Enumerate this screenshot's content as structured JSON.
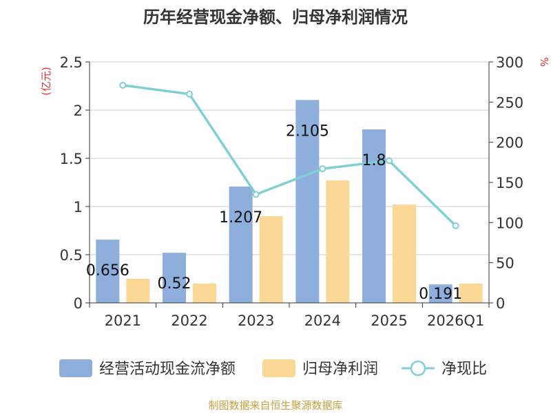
{
  "chart_data": {
    "type": "bar",
    "title": "历年经营现金净额、归母净利润情况",
    "categories": [
      "2021",
      "2022",
      "2023",
      "2024",
      "2025",
      "2026Q1"
    ],
    "y_left": {
      "unit_label": "(亿元)",
      "range": [
        0,
        2.5
      ],
      "ticks": [
        "0",
        "0.5",
        "1",
        "1.5",
        "2",
        "2.5"
      ]
    },
    "y_right": {
      "unit_label": "%",
      "range": [
        0,
        300
      ],
      "ticks": [
        "0",
        "50",
        "100",
        "150",
        "200",
        "250",
        "300"
      ]
    },
    "grid": true,
    "legend_position": "bottom",
    "series": [
      {
        "name": "经营活动现金流净额",
        "type": "bar",
        "axis": "left",
        "color": "#8eaedb",
        "values": [
          0.656,
          0.52,
          1.207,
          2.105,
          1.8,
          0.191
        ],
        "data_labels": [
          "0.656",
          "0.52",
          "1.207",
          "2.105",
          "1.8",
          "0.191"
        ]
      },
      {
        "name": "归母净利润",
        "type": "bar",
        "axis": "left",
        "color": "#fcd896",
        "values": [
          0.25,
          0.2,
          0.9,
          1.27,
          1.02,
          0.2
        ]
      },
      {
        "name": "净现比",
        "type": "line",
        "axis": "right",
        "color": "#7fcfd4",
        "values": [
          271,
          260,
          135,
          167,
          177,
          96
        ]
      }
    ],
    "source_text": "制图数据来自恒生聚源数据库"
  }
}
